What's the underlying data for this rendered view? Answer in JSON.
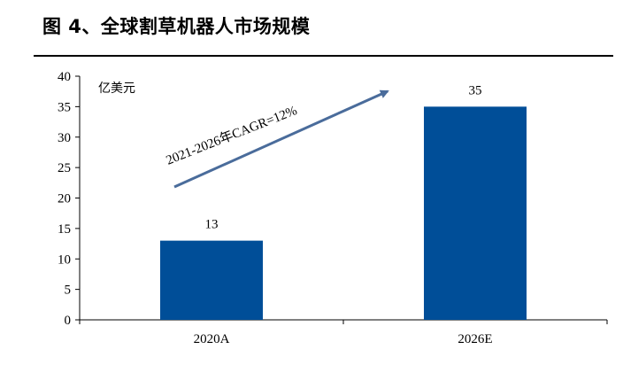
{
  "figure_title": "图 4、全球割草机器人市场规模",
  "colors": {
    "bar": "#004E98",
    "arrow": "#4A6C9B",
    "axis": "#000000"
  },
  "chart_data": {
    "type": "bar",
    "categories": [
      "2020A",
      "2026E"
    ],
    "values": [
      13,
      35
    ],
    "data_labels": [
      "13",
      "35"
    ],
    "ylabel": "亿美元",
    "ylim": [
      0,
      40
    ],
    "yticks": [
      0,
      5,
      10,
      15,
      20,
      25,
      30,
      35,
      40
    ],
    "grid": false,
    "annotation": "2021-2026年CAGR=12%"
  }
}
